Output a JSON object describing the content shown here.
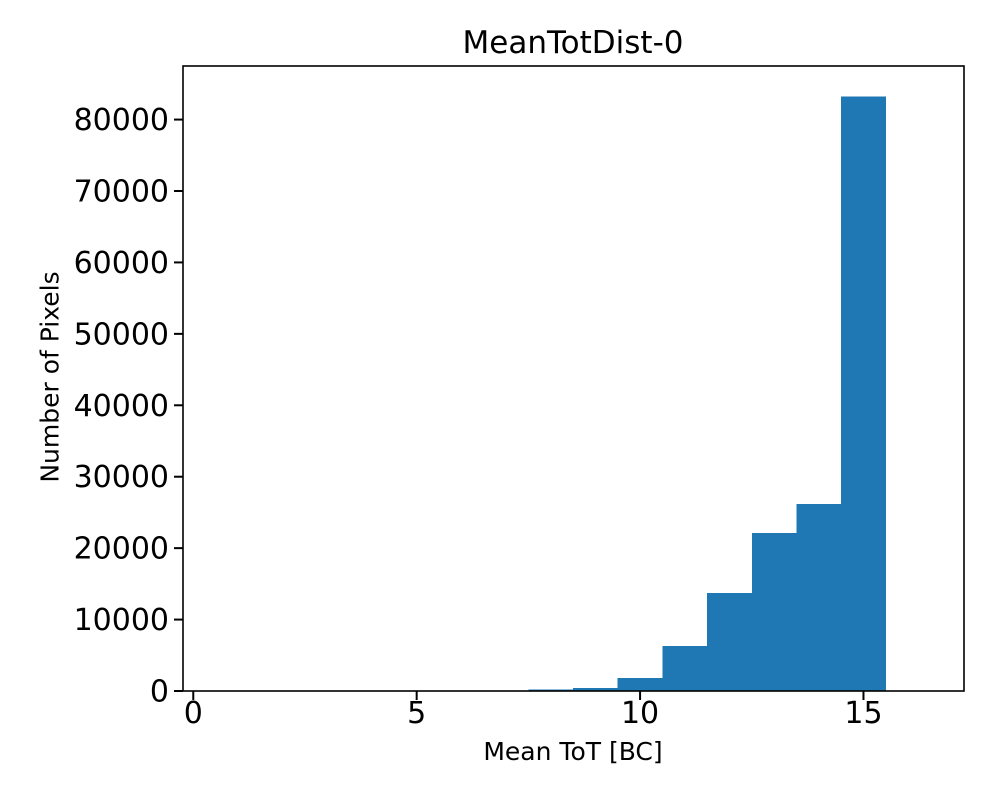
{
  "figure": {
    "background_color": "#ffffff",
    "text_color": "#000000"
  },
  "chart_data": {
    "type": "bar",
    "subtype": "histogram",
    "title": "MeanTotDist-0",
    "xlabel": "Mean ToT [BC]",
    "ylabel": "Number of Pixels",
    "bin_edges": [
      7.5,
      8.5,
      9.5,
      10.5,
      11.5,
      12.5,
      13.5,
      14.5,
      15.5
    ],
    "counts": [
      180,
      450,
      1800,
      6300,
      13700,
      22100,
      26200,
      83200
    ],
    "bar_color": "#1f77b4",
    "xlim": [
      -0.23,
      17.25
    ],
    "ylim": [
      0,
      87500
    ],
    "xticks": [
      0,
      5,
      10,
      15
    ],
    "xtick_labels": [
      "0",
      "5",
      "10",
      "15"
    ],
    "yticks": [
      0,
      10000,
      20000,
      30000,
      40000,
      50000,
      60000,
      70000,
      80000
    ],
    "ytick_labels": [
      "0",
      "10000",
      "20000",
      "30000",
      "40000",
      "50000",
      "60000",
      "70000",
      "80000"
    ],
    "grid": false,
    "legend": null,
    "axis_color": "#000000"
  }
}
